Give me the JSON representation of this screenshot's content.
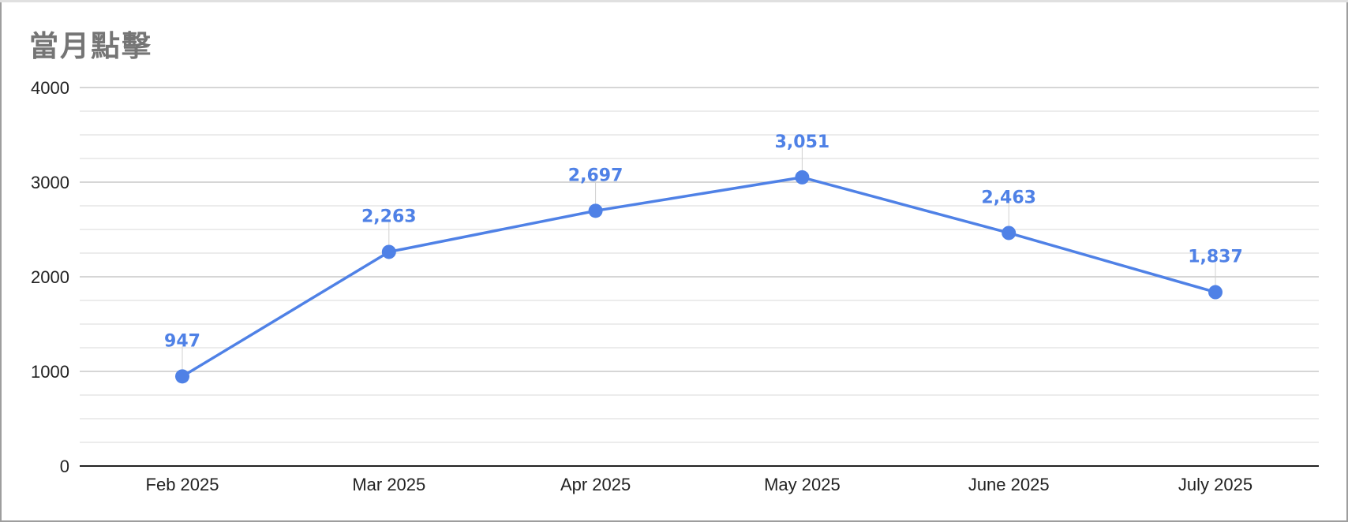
{
  "chart_data": {
    "type": "line",
    "title": "當月點擊",
    "categories": [
      "Feb 2025",
      "Mar 2025",
      "Apr 2025",
      "May 2025",
      "June 2025",
      "July 2025"
    ],
    "series": [
      {
        "values": [
          947,
          2263,
          2697,
          3051,
          2463,
          1837
        ],
        "labels": [
          "947",
          "2,263",
          "2,697",
          "3,051",
          "2,463",
          "1,837"
        ],
        "color": "#4f81e6"
      }
    ],
    "ylim": [
      0,
      4000
    ],
    "yticks": [
      "0",
      "1000",
      "2000",
      "3000",
      "4000"
    ],
    "minor_gridlines": true,
    "legend": "none",
    "colors": {
      "line": "#4f81e6",
      "title": "#757575",
      "major_grid": "#c8c8c8",
      "minor_grid": "#e6e6e6",
      "axis": "#222222"
    }
  }
}
